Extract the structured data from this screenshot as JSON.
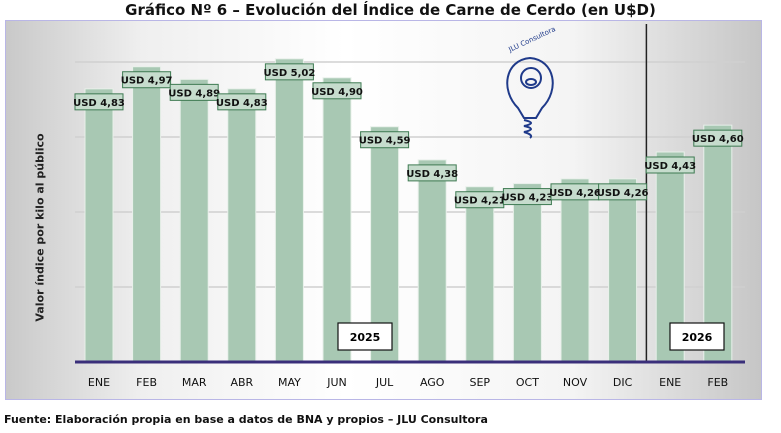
{
  "chart_data": {
    "type": "bar",
    "title": "Gráfico Nº 6 – Evolución del Índice de Carne de Cerdo (en U$D)",
    "ylabel": "Valor índice por kilo al público",
    "xlabel": "",
    "categories": [
      "ENE",
      "FEB",
      "MAR",
      "ABR",
      "MAY",
      "JUN",
      "JUL",
      "AGO",
      "SEP",
      "OCT",
      "NOV",
      "DIC",
      "ENE",
      "FEB"
    ],
    "values": [
      4.83,
      4.97,
      4.89,
      4.83,
      5.02,
      4.9,
      4.59,
      4.38,
      4.21,
      4.23,
      4.26,
      4.26,
      4.43,
      4.6
    ],
    "data_labels": [
      "USD 4,83",
      "USD 4,97",
      "USD 4,89",
      "USD 4,83",
      "USD 5,02",
      "USD 4,90",
      "USD 4,59",
      "USD 4,38",
      "USD 4,21",
      "USD 4,23",
      "USD 4,26",
      "USD 4,26",
      "USD 4,43",
      "USD 4,60"
    ],
    "ylim": [
      3.1,
      5.0
    ],
    "grid": true,
    "year_labels": [
      "2025",
      "2026"
    ],
    "year_divider_after_index": 11,
    "bar_color": "#a8c8b3",
    "label_border": "#3e7a52",
    "axis_color": "#3a2f7a"
  },
  "logo_text": "JLU Consultora",
  "source": "Fuente: Elaboración propia en base a datos de BNA y propios – JLU Consultora"
}
